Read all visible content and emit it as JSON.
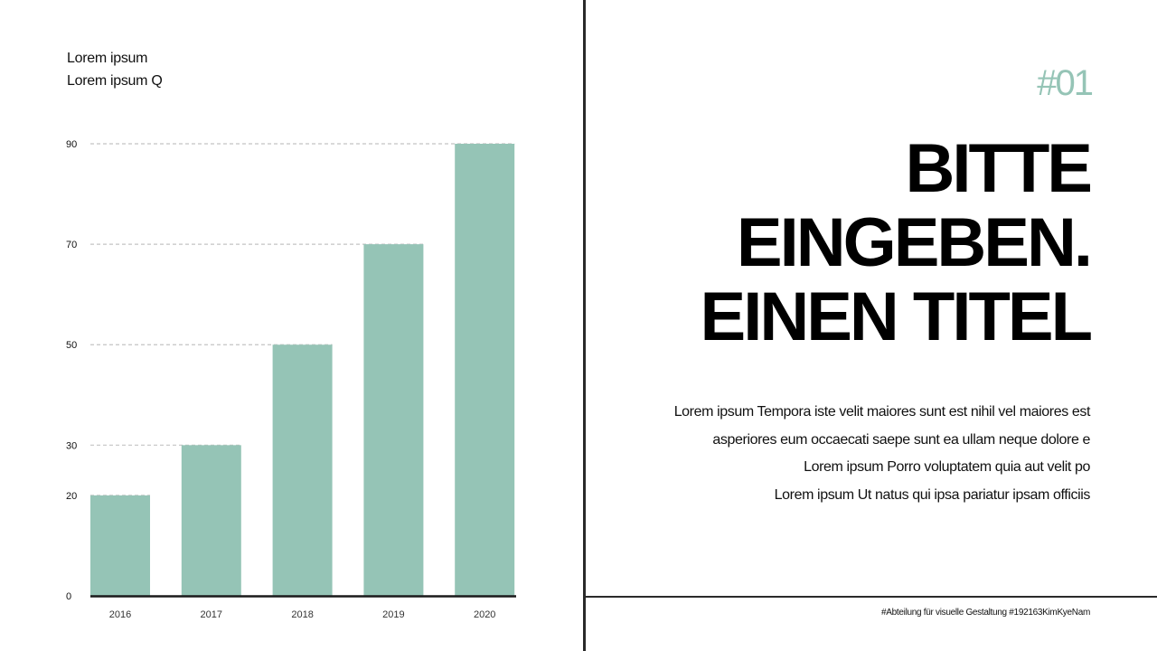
{
  "chart_caption": {
    "line1": "Lorem ipsum",
    "line2": "Lorem ipsum Q"
  },
  "chart_data": {
    "type": "bar",
    "categories": [
      "2016",
      "2017",
      "2018",
      "2019",
      "2020"
    ],
    "values": [
      20,
      30,
      50,
      70,
      90
    ],
    "yticks": [
      0,
      20,
      30,
      50,
      70,
      90
    ],
    "ylim": [
      0,
      90
    ],
    "bar_color": "#95c4b6",
    "grid": "dashed lines at each bar value"
  },
  "slide_number": "#01",
  "title": {
    "line1": "BITTE",
    "line2": "EINGEBEN.",
    "line3": "EINEN TITEL"
  },
  "body": {
    "line1": "Lorem ipsum Tempora iste velit maiores sunt est nihil vel maiores est",
    "line2": "asperiores eum occaecati saepe sunt ea ullam neque dolore e",
    "line3": "Lorem ipsum Porro voluptatem quia aut velit po",
    "line4": "Lorem ipsum Ut natus qui ipsa pariatur ipsam officiis"
  },
  "footer": "#Abteilung für visuelle Gestaltung #192163KimKyeNam",
  "colors": {
    "accent": "#95c4b6",
    "divider": "#2a2a2a",
    "text": "#111111"
  }
}
